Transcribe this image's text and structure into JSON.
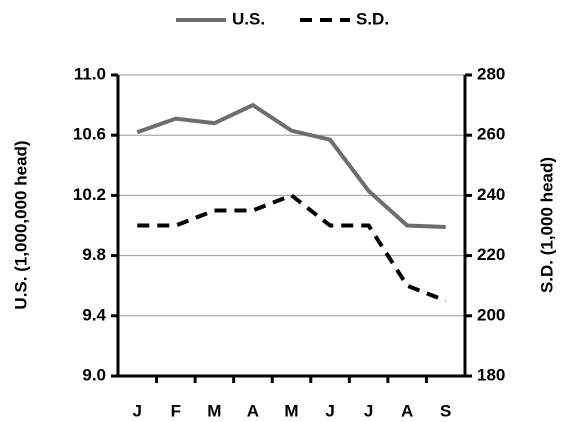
{
  "chart_data": {
    "type": "line",
    "categories": [
      "J",
      "F",
      "M",
      "A",
      "M",
      "J",
      "J",
      "A",
      "S"
    ],
    "series": [
      {
        "name": "U.S.",
        "color": "#6d6d6d",
        "dash": false,
        "axis": "y",
        "values": [
          10.62,
          10.71,
          10.68,
          10.8,
          10.63,
          10.57,
          10.23,
          10.0,
          9.99
        ]
      },
      {
        "name": "S.D.",
        "color": "#000000",
        "dash": true,
        "axis": "y2",
        "values": [
          230,
          230,
          235,
          235,
          240,
          230,
          230,
          210,
          205
        ]
      }
    ],
    "ylabel": "U.S. (1,000,000 head)",
    "y2label": "S.D. (1,000 head)",
    "ylim": [
      9,
      11
    ],
    "yticks": [
      {
        "value": 9,
        "label": "9.0"
      },
      9.4,
      9.8,
      10.2,
      10.6,
      {
        "value": 11,
        "label": "11.0"
      }
    ],
    "y2lim": [
      180,
      280
    ],
    "y2ticks": [
      180,
      200,
      220,
      240,
      260,
      280
    ],
    "grid": true,
    "legend": "top"
  }
}
